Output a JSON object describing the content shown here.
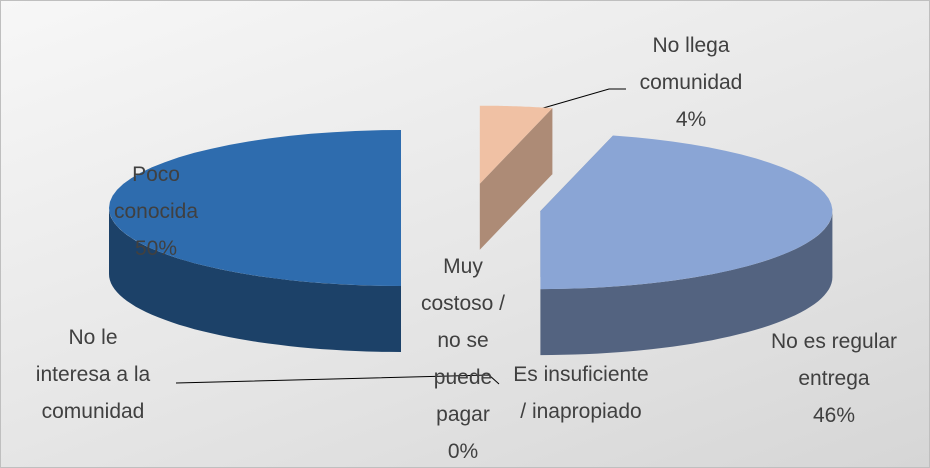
{
  "chart_data": {
    "type": "pie3d",
    "categories": [
      "No llega comunidad",
      "No es regular entrega",
      "Es insuficiente / inapropiado",
      "Muy costoso / no se puede pagar",
      "No le interesa a la comunidad",
      "Poco conocida"
    ],
    "values": [
      4,
      46,
      0,
      0,
      0,
      50
    ],
    "value_labels": [
      "4%",
      "46%",
      null,
      "0%",
      null,
      "50%"
    ],
    "colors": [
      "#f0c1a4",
      "#8aa5d5",
      "#a5a5a5",
      "#ffc000",
      "#5b9bd5",
      "#2e6cae"
    ],
    "exploded": true
  }
}
